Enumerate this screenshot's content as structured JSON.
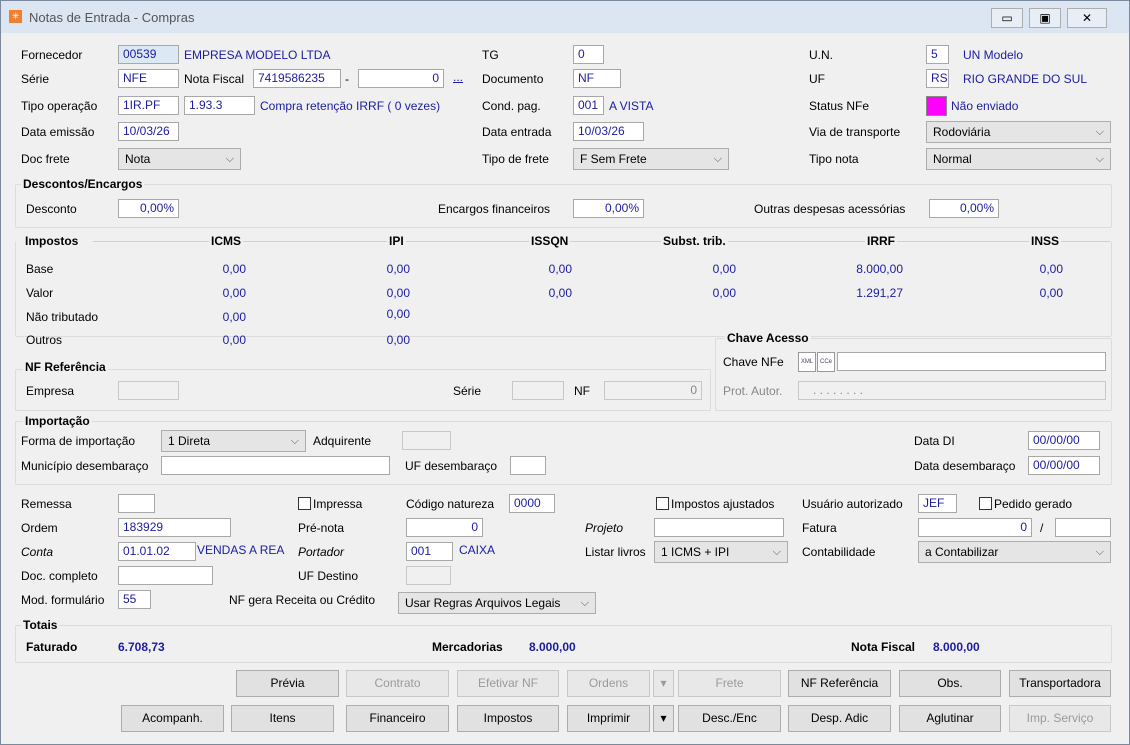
{
  "window": {
    "title": "Notas de Entrada - Compras",
    "controls": [
      "minimize",
      "maximize",
      "close"
    ]
  },
  "header": {
    "fornecedor_label": "Fornecedor",
    "fornecedor_code": "00539",
    "fornecedor_name": "EMPRESA MODELO LTDA",
    "serie_label": "Série",
    "serie": "NFE",
    "nota_fiscal_label": "Nota Fiscal",
    "nota_fiscal": "7419586235",
    "nota_sep": "-",
    "nota_suffix": "0",
    "ellipsis": "...",
    "tipo_operacao_label": "Tipo operação",
    "tipo_operacao": "1IR.PF",
    "cfop": "1.93.3",
    "tipo_operacao_desc": "Compra retenção IRRF ( 0 vezes)",
    "data_emissao_label": "Data emissão",
    "data_emissao": "10/03/26",
    "doc_frete_label": "Doc frete",
    "doc_frete": "Nota",
    "tg_label": "TG",
    "tg": "0",
    "documento_label": "Documento",
    "documento": "NF",
    "cond_pag_label": "Cond. pag.",
    "cond_pag_code": "001",
    "cond_pag_desc": "A VISTA",
    "data_entrada_label": "Data entrada",
    "data_entrada": "10/03/26",
    "tipo_frete_label": "Tipo de frete",
    "tipo_frete": "F Sem Frete",
    "un_label": "U.N.",
    "un_code": "5",
    "un_name": "UN Modelo",
    "uf_label": "UF",
    "uf": "RS",
    "uf_name": "RIO GRANDE DO SUL",
    "status_label": "Status NFe",
    "status": "Não enviado",
    "status_color": "#ff00ff",
    "via_label": "Via de transporte",
    "via": "Rodoviária",
    "tipo_nota_label": "Tipo nota",
    "tipo_nota": "Normal"
  },
  "descontos": {
    "title": "Descontos/Encargos",
    "desconto_label": "Desconto",
    "desconto": "0,00%",
    "encargos_label": "Encargos financeiros",
    "encargos": "0,00%",
    "outras_label": "Outras despesas acessórias",
    "outras": "0,00%"
  },
  "impostos": {
    "title": "Impostos",
    "columns": [
      "ICMS",
      "IPI",
      "ISSQN",
      "Subst. trib.",
      "IRRF",
      "INSS"
    ],
    "rows": [
      {
        "label": "Base",
        "values": [
          "0,00",
          "0,00",
          "0,00",
          "0,00",
          "8.000,00",
          "0,00"
        ]
      },
      {
        "label": "Valor",
        "values": [
          "0,00",
          "0,00",
          "0,00",
          "0,00",
          "1.291,27",
          "0,00"
        ]
      },
      {
        "label": "Não tributado",
        "values": [
          "0,00",
          "0,00"
        ]
      },
      {
        "label": "Outros",
        "values": [
          "0,00",
          "0,00"
        ]
      }
    ]
  },
  "chave": {
    "title": "Chave Acesso",
    "chave_label": "Chave NFe",
    "chave": "",
    "prot_label": "Prot. Autor.",
    "prot": ". . . . . . . ."
  },
  "nf_ref": {
    "title": "NF Referência",
    "empresa_label": "Empresa",
    "serie_label": "Série",
    "nf_label": "NF",
    "nf": "0"
  },
  "importacao": {
    "title": "Importação",
    "forma_label": "Forma de importação",
    "forma": "1 Direta",
    "adquirente_label": "Adquirente",
    "data_di_label": "Data DI",
    "data_di": "00/00/00",
    "municipio_label": "Município desembaraço",
    "uf_label": "UF desembaraço",
    "data_des_label": "Data desembaraço",
    "data_des": "00/00/00"
  },
  "extra": {
    "remessa_label": "Remessa",
    "impressa_label": "Impressa",
    "cod_nat_label": "Código natureza",
    "cod_nat": "0000",
    "imp_ajust_label": "Impostos ajustados",
    "usuario_label": "Usuário autorizado",
    "usuario": "JEF",
    "pedido_label": "Pedido gerado",
    "ordem_label": "Ordem",
    "ordem": "183929",
    "prenota_label": "Pré-nota",
    "prenota": "0",
    "projeto_label": "Projeto",
    "fatura_label": "Fatura",
    "fatura": "0",
    "fatura_sep": "/",
    "conta_label": "Conta",
    "conta": "01.01.02",
    "conta_desc": "VENDAS A REA",
    "portador_label": "Portador",
    "portador": "001",
    "portador_desc": "CAIXA",
    "listar_label": "Listar livros",
    "listar": "1 ICMS + IPI",
    "contab_label": "Contabilidade",
    "contab": "a Contabilizar",
    "doc_completo_label": "Doc. completo",
    "uf_dest_label": "UF Destino",
    "mod_label": "Mod. formulário",
    "mod": "55",
    "nf_gera_label": "NF gera Receita ou Crédito",
    "nf_gera": "Usar Regras Arquivos Legais"
  },
  "totais": {
    "title": "Totais",
    "faturado_label": "Faturado",
    "faturado": "6.708,73",
    "mercadorias_label": "Mercadorias",
    "mercadorias": "8.000,00",
    "nf_label": "Nota Fiscal",
    "nf": "8.000,00"
  },
  "buttons": {
    "previa": "Prévia",
    "contrato": "Contrato",
    "efetivar": "Efetivar NF",
    "ordens": "Ordens",
    "frete": "Frete",
    "nf_ref": "NF Referência",
    "obs": "Obs.",
    "transportadora": "Transportadora",
    "acompanh": "Acompanh.",
    "itens": "Itens",
    "financeiro": "Financeiro",
    "impostos": "Impostos",
    "imprimir": "Imprimir",
    "desc_enc": "Desc./Enc",
    "desp_adic": "Desp. Adic",
    "aglutinar": "Aglutinar",
    "imp_servico": "Imp. Serviço"
  }
}
